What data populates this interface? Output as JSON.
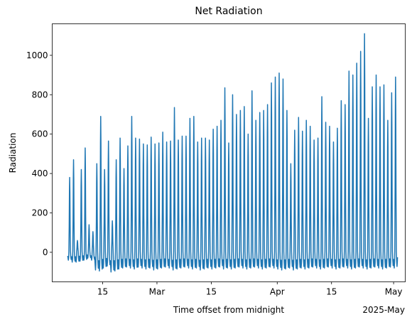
{
  "chart_data": {
    "type": "line",
    "title": "Net Radiation",
    "xlabel": "Time offset from midnight",
    "ylabel": "Radiation",
    "x_start": "2025-02-06",
    "x_end": "2025-05-01",
    "xlim": [
      "2025-02-02",
      "2025-05-04"
    ],
    "ylim": [
      -150,
      1160
    ],
    "x_ticks": [
      {
        "date": "2025-02-15",
        "label": "15"
      },
      {
        "date": "2025-03-01",
        "label": "Mar"
      },
      {
        "date": "2025-03-15",
        "label": "15"
      },
      {
        "date": "2025-04-01",
        "label": "Apr"
      },
      {
        "date": "2025-04-15",
        "label": "15"
      },
      {
        "date": "2025-05-01",
        "label": "May"
      }
    ],
    "x_offset_label": "2025-May",
    "y_ticks": [
      0,
      200,
      400,
      600,
      800,
      1000
    ],
    "grid": false,
    "series": [
      {
        "color": "#1f77b4",
        "daily_max": [
          380,
          470,
          60,
          420,
          530,
          140,
          105,
          450,
          690,
          420,
          565,
          160,
          470,
          580,
          425,
          540,
          690,
          580,
          575,
          550,
          545,
          585,
          550,
          555,
          610,
          560,
          565,
          735,
          570,
          590,
          590,
          680,
          690,
          560,
          580,
          580,
          570,
          625,
          640,
          670,
          835,
          555,
          800,
          700,
          720,
          740,
          600,
          820,
          670,
          710,
          720,
          750,
          860,
          890,
          910,
          880,
          720,
          450,
          620,
          685,
          615,
          670,
          640,
          570,
          580,
          790,
          660,
          640,
          560,
          630,
          770,
          750,
          920,
          900,
          960,
          1020,
          1110,
          680,
          840,
          900,
          840,
          850,
          670,
          810,
          890
        ],
        "daily_min": [
          -40,
          -50,
          -50,
          -45,
          -40,
          -30,
          -40,
          -90,
          -95,
          -80,
          -70,
          -100,
          -95,
          -85,
          -80,
          -75,
          -80,
          -85,
          -75,
          -80,
          -85,
          -80,
          -90,
          -85,
          -80,
          -75,
          -80,
          -90,
          -85,
          -80,
          -75,
          -80,
          -85,
          -80,
          -90,
          -85,
          -80,
          -85,
          -80,
          -75,
          -85,
          -80,
          -85,
          -80,
          -75,
          -80,
          -85,
          -80,
          -75,
          -80,
          -85,
          -80,
          -75,
          -80,
          -85,
          -90,
          -85,
          -80,
          -90,
          -85,
          -80,
          -85,
          -80,
          -75,
          -80,
          -85,
          -80,
          -75,
          -80,
          -85,
          -80,
          -75,
          -80,
          -85,
          -80,
          -75,
          -80,
          -85,
          -80,
          -75,
          -80,
          -85,
          -80,
          -75,
          -80
        ]
      }
    ]
  }
}
